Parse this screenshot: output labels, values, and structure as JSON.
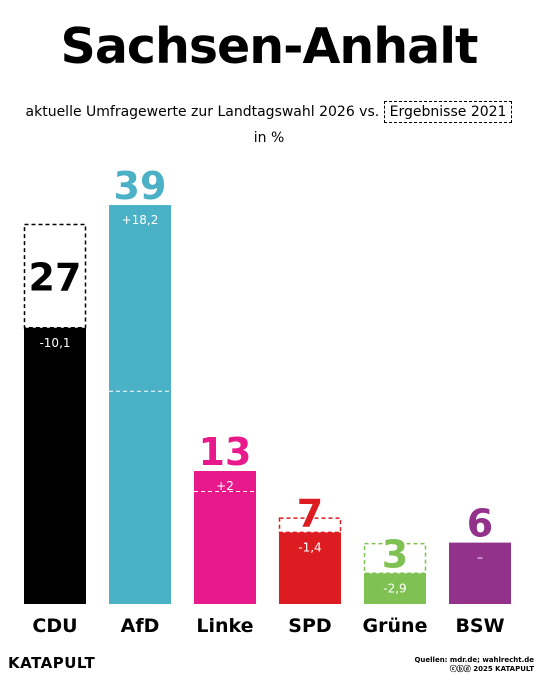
{
  "title": "Sachsen-Anhalt",
  "subtitle_main": "aktuelle Umfragewerte zur Landtagswahl 2026 vs.",
  "subtitle_box": "Ergebnisse 2021",
  "unit": "in %",
  "logo": "KATAPULT",
  "sources_line1": "Quellen: mdr.de; wahlrecht.de",
  "sources_line2": "ⓒⓑⓓ 2025 KATAPULT",
  "chart_data": {
    "type": "bar",
    "categories": [
      "CDU",
      "AfD",
      "Linke",
      "SPD",
      "Grüne",
      "BSW"
    ],
    "values": [
      27,
      39,
      13,
      7,
      3,
      6
    ],
    "previous_2021": [
      37.1,
      20.8,
      11,
      8.4,
      5.9,
      null
    ],
    "change_labels": [
      "-10,1",
      "+18,2",
      "+2",
      "-1,4",
      "-2,9",
      "–"
    ],
    "colors": [
      "#000000",
      "#4bb1c6",
      "#e8198b",
      "#dc1c20",
      "#7fc153",
      "#93328b"
    ]
  }
}
